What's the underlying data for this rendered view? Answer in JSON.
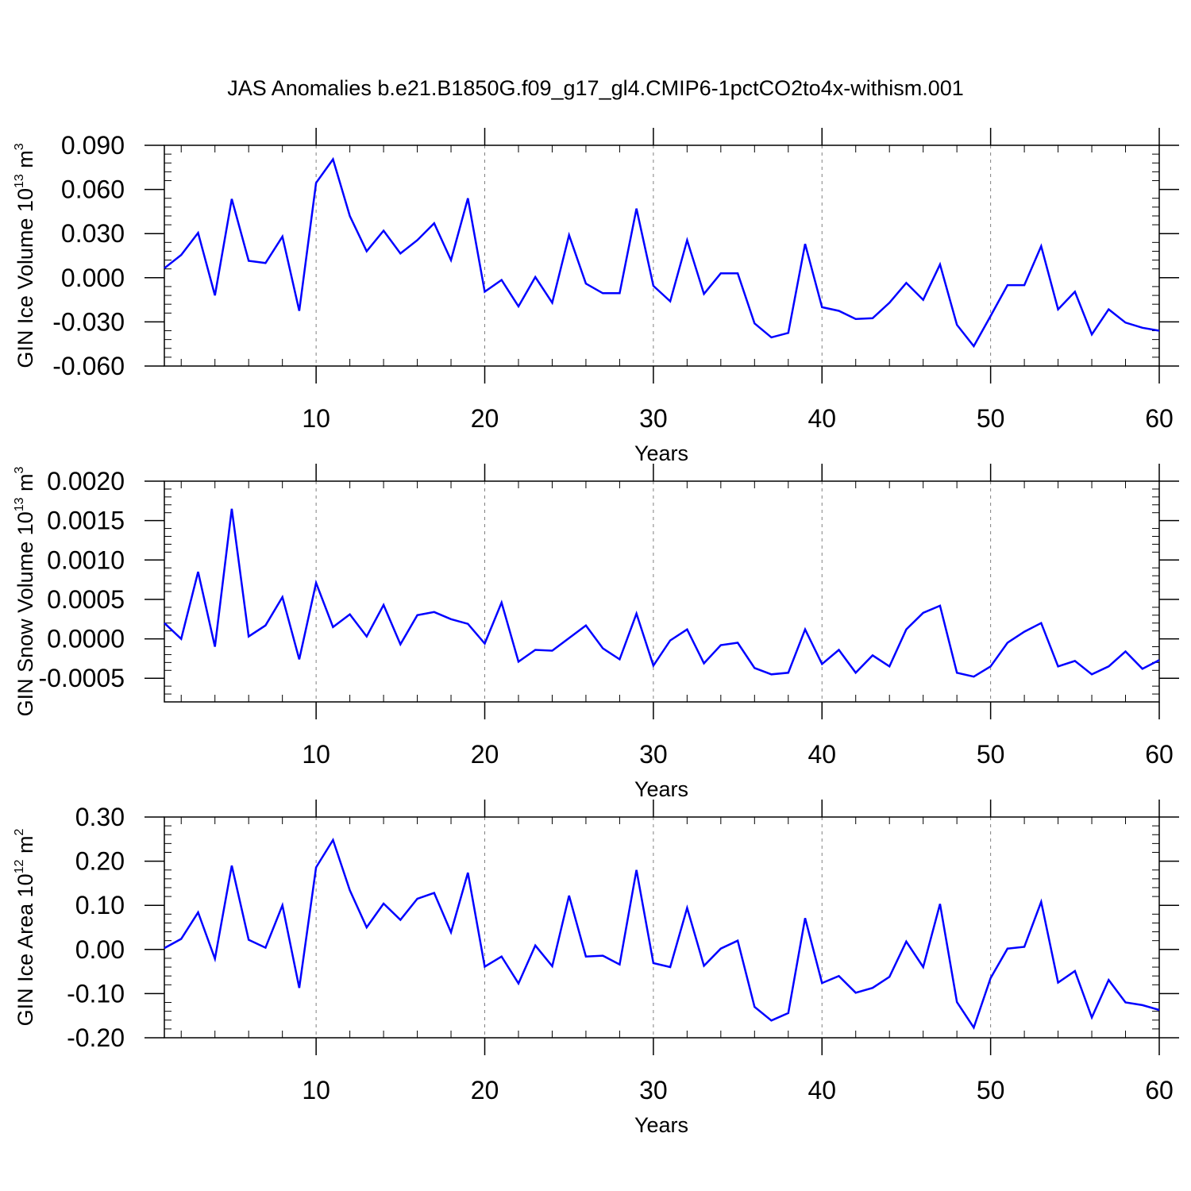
{
  "title": "JAS Anomalies b.e21.B1850G.f09_g17_gl4.CMIP6-1pctCO2to4x-withism.001",
  "line_color": "#0000ff",
  "chart_data": [
    {
      "type": "line",
      "name": "ice-volume",
      "ylabel": {
        "main": "GIN Ice Volume 10",
        "sup1": "13",
        "mid": " m",
        "sup2": "3"
      },
      "xlabel": "Years",
      "xlim": [
        1,
        60
      ],
      "ylim": [
        -0.06,
        0.09
      ],
      "yticks": [
        -0.06,
        -0.03,
        0.0,
        0.03,
        0.06,
        0.09
      ],
      "ytick_labels": [
        "-0.060",
        "-0.030",
        "0.000",
        "0.030",
        "0.060",
        "0.090"
      ],
      "yminor_step": 0.006,
      "xticks": [
        10,
        20,
        30,
        40,
        50,
        60
      ],
      "xtick_labels": [
        "10",
        "20",
        "30",
        "40",
        "50",
        "60"
      ],
      "gridlines_x": [
        10,
        20,
        30,
        40,
        50
      ],
      "x": [
        1,
        2,
        3,
        4,
        5,
        6,
        7,
        8,
        9,
        10,
        11,
        12,
        13,
        14,
        15,
        16,
        17,
        18,
        19,
        20,
        21,
        22,
        23,
        24,
        25,
        26,
        27,
        28,
        29,
        30,
        31,
        32,
        33,
        34,
        35,
        36,
        37,
        38,
        39,
        40,
        41,
        42,
        43,
        44,
        45,
        46,
        47,
        48,
        49,
        50,
        51,
        52,
        53,
        54,
        55,
        56,
        57,
        58,
        59,
        60
      ],
      "y": [
        0.0065,
        0.0155,
        0.0305,
        -0.012,
        0.0535,
        0.0115,
        0.01,
        0.028,
        -0.0225,
        0.0645,
        0.0805,
        0.042,
        0.018,
        0.032,
        0.0165,
        0.0255,
        0.037,
        0.012,
        0.054,
        -0.0095,
        -0.0015,
        -0.0195,
        0.0005,
        -0.017,
        0.029,
        -0.004,
        -0.0105,
        -0.0105,
        0.047,
        -0.0055,
        -0.016,
        0.0255,
        -0.011,
        0.003,
        0.003,
        -0.031,
        -0.0405,
        -0.0375,
        0.023,
        -0.02,
        -0.0225,
        -0.028,
        -0.0275,
        -0.017,
        -0.0035,
        -0.015,
        0.009,
        -0.032,
        -0.0465,
        -0.026,
        -0.005,
        -0.005,
        0.0215,
        -0.0215,
        -0.0095,
        -0.0385,
        -0.0215,
        -0.0305,
        -0.034,
        -0.036
      ]
    },
    {
      "type": "line",
      "name": "snow-volume",
      "ylabel": {
        "main": "GIN Snow Volume 10",
        "sup1": "13",
        "mid": " m",
        "sup2": "3"
      },
      "xlabel": "Years",
      "xlim": [
        1,
        60
      ],
      "ylim": [
        -0.0008,
        0.002
      ],
      "yticks": [
        -0.0005,
        0.0,
        0.0005,
        0.001,
        0.0015,
        0.002
      ],
      "ytick_labels": [
        "-0.0005",
        "0.0000",
        "0.0005",
        "0.0010",
        "0.0015",
        "0.0020"
      ],
      "yminor_step": 0.0001,
      "xticks": [
        10,
        20,
        30,
        40,
        50,
        60
      ],
      "xtick_labels": [
        "10",
        "20",
        "30",
        "40",
        "50",
        "60"
      ],
      "gridlines_x": [
        10,
        20,
        30,
        40,
        50
      ],
      "x": [
        1,
        2,
        3,
        4,
        5,
        6,
        7,
        8,
        9,
        10,
        11,
        12,
        13,
        14,
        15,
        16,
        17,
        18,
        19,
        20,
        21,
        22,
        23,
        24,
        25,
        26,
        27,
        28,
        29,
        30,
        31,
        32,
        33,
        34,
        35,
        36,
        37,
        38,
        39,
        40,
        41,
        42,
        43,
        44,
        45,
        46,
        47,
        48,
        49,
        50,
        51,
        52,
        53,
        54,
        55,
        56,
        57,
        58,
        59,
        60
      ],
      "y": [
        0.0002,
        0.0,
        0.00085,
        -0.0001,
        0.00165,
        3e-05,
        0.00017,
        0.00053,
        -0.00026,
        0.00071,
        0.00015,
        0.00031,
        3e-05,
        0.00043,
        -7e-05,
        0.0003,
        0.00034,
        0.00025,
        0.00019,
        -6e-05,
        0.00046,
        -0.00029,
        -0.00014,
        -0.00015,
        1e-05,
        0.00017,
        -0.00012,
        -0.00026,
        0.00032,
        -0.00034,
        -2e-05,
        0.00012,
        -0.00031,
        -8e-05,
        -5e-05,
        -0.00037,
        -0.00045,
        -0.00043,
        0.00012,
        -0.00032,
        -0.00014,
        -0.00043,
        -0.00021,
        -0.00035,
        0.00012,
        0.00033,
        0.00042,
        -0.00043,
        -0.00048,
        -0.00035,
        -5e-05,
        9e-05,
        0.0002,
        -0.00035,
        -0.00028,
        -0.00045,
        -0.00035,
        -0.00016,
        -0.00038,
        -0.00027
      ]
    },
    {
      "type": "line",
      "name": "ice-area",
      "ylabel": {
        "main": "GIN Ice Area 10",
        "sup1": "12",
        "mid": " m",
        "sup2": "2"
      },
      "xlabel": "Years",
      "xlim": [
        1,
        60
      ],
      "ylim": [
        -0.2,
        0.3
      ],
      "yticks": [
        -0.2,
        -0.1,
        0.0,
        0.1,
        0.2,
        0.3
      ],
      "ytick_labels": [
        "-0.20",
        "-0.10",
        "0.00",
        "0.10",
        "0.20",
        "0.30"
      ],
      "yminor_step": 0.02,
      "xticks": [
        10,
        20,
        30,
        40,
        50,
        60
      ],
      "xtick_labels": [
        "10",
        "20",
        "30",
        "40",
        "50",
        "60"
      ],
      "gridlines_x": [
        10,
        20,
        30,
        40,
        50
      ],
      "x": [
        1,
        2,
        3,
        4,
        5,
        6,
        7,
        8,
        9,
        10,
        11,
        12,
        13,
        14,
        15,
        16,
        17,
        18,
        19,
        20,
        21,
        22,
        23,
        24,
        25,
        26,
        27,
        28,
        29,
        30,
        31,
        32,
        33,
        34,
        35,
        36,
        37,
        38,
        39,
        40,
        41,
        42,
        43,
        44,
        45,
        46,
        47,
        48,
        49,
        50,
        51,
        52,
        53,
        54,
        55,
        56,
        57,
        58,
        59,
        60
      ],
      "y": [
        0.003,
        0.024,
        0.084,
        -0.021,
        0.19,
        0.022,
        0.004,
        0.1,
        -0.087,
        0.186,
        0.248,
        0.134,
        0.05,
        0.104,
        0.067,
        0.115,
        0.128,
        0.039,
        0.174,
        -0.039,
        -0.016,
        -0.077,
        0.009,
        -0.038,
        0.122,
        -0.016,
        -0.014,
        -0.034,
        0.18,
        -0.031,
        -0.04,
        0.094,
        -0.037,
        0.002,
        0.02,
        -0.13,
        -0.161,
        -0.144,
        0.071,
        -0.076,
        -0.06,
        -0.098,
        -0.087,
        -0.062,
        0.018,
        -0.04,
        0.103,
        -0.119,
        -0.177,
        -0.065,
        0.002,
        0.006,
        0.108,
        -0.075,
        -0.049,
        -0.154,
        -0.069,
        -0.12,
        -0.126,
        -0.137
      ]
    }
  ]
}
